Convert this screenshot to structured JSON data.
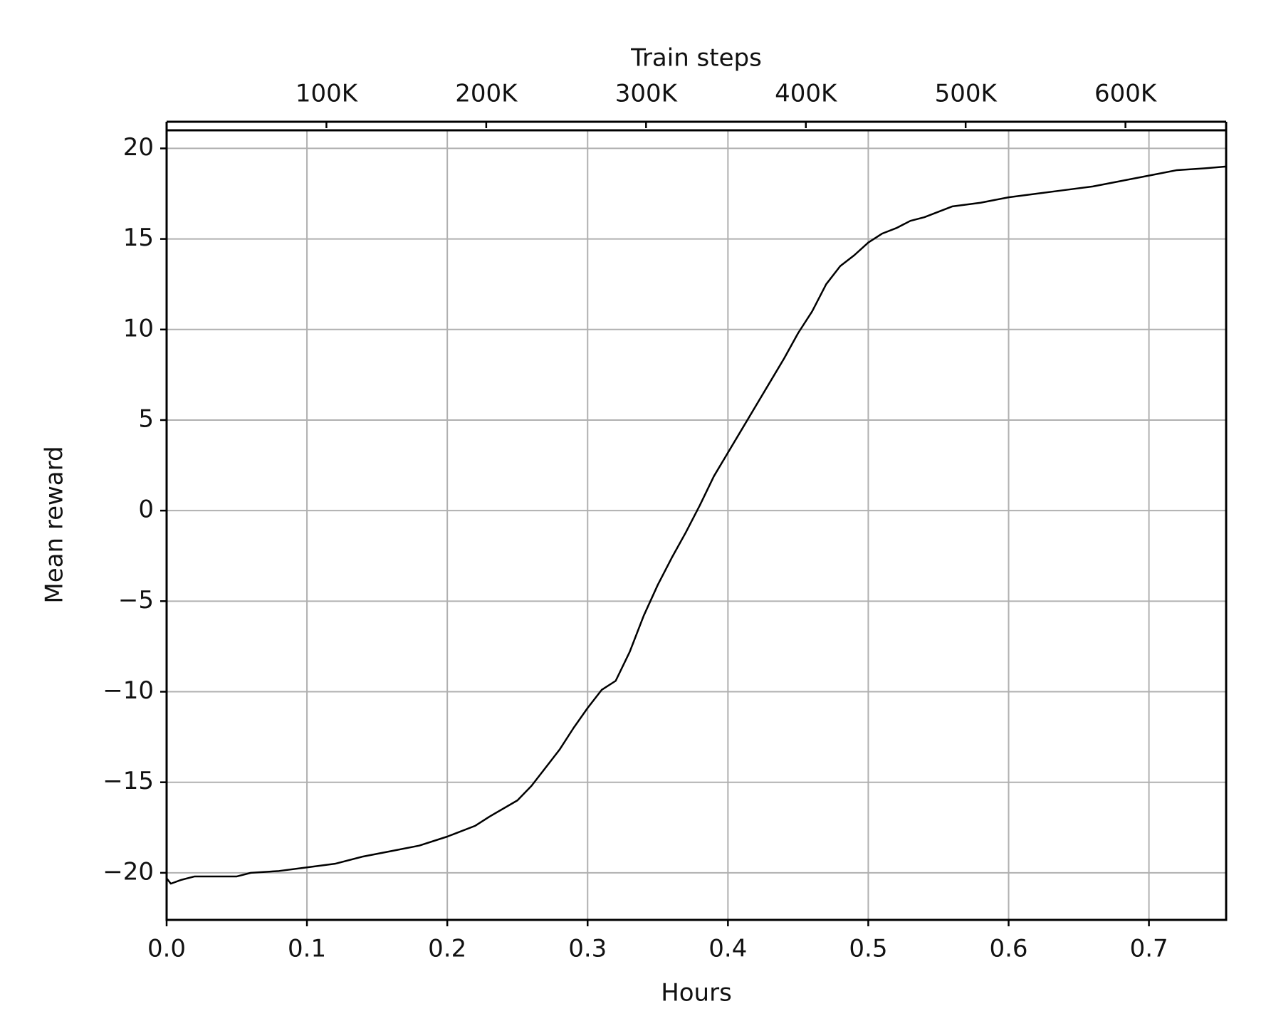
{
  "chart_data": {
    "type": "line",
    "xlabel": "Hours",
    "ylabel": "Mean reward",
    "x2label": "Train steps",
    "xlim": [
      0,
      0.755
    ],
    "ylim": [
      -22.6,
      21.0
    ],
    "x2lim": [
      0,
      663000
    ],
    "xticks": [
      {
        "value": 0,
        "label": "0.0"
      },
      0.1,
      0.2,
      0.3,
      0.4,
      0.5,
      0.6,
      0.7
    ],
    "yticks": [
      {
        "value": -20,
        "label": "−20"
      },
      {
        "value": -15,
        "label": "−15"
      },
      {
        "value": -10,
        "label": "−10"
      },
      {
        "value": -5,
        "label": "−5"
      },
      0,
      5,
      10,
      15,
      20
    ],
    "x2ticks": [
      {
        "value": 100000,
        "label": "100K"
      },
      {
        "value": 200000,
        "label": "200K"
      },
      {
        "value": 300000,
        "label": "300K"
      },
      {
        "value": 400000,
        "label": "400K"
      },
      {
        "value": 500000,
        "label": "500K"
      },
      {
        "value": 600000,
        "label": "600K"
      }
    ],
    "grid": true,
    "color": "#000000",
    "x": [
      0.0,
      0.003,
      0.01,
      0.02,
      0.05,
      0.06,
      0.08,
      0.1,
      0.12,
      0.14,
      0.16,
      0.18,
      0.2,
      0.22,
      0.23,
      0.25,
      0.26,
      0.27,
      0.28,
      0.29,
      0.3,
      0.31,
      0.32,
      0.33,
      0.34,
      0.35,
      0.36,
      0.37,
      0.38,
      0.39,
      0.4,
      0.41,
      0.42,
      0.43,
      0.44,
      0.45,
      0.46,
      0.47,
      0.48,
      0.49,
      0.5,
      0.51,
      0.52,
      0.53,
      0.54,
      0.55,
      0.56,
      0.58,
      0.6,
      0.62,
      0.64,
      0.66,
      0.68,
      0.7,
      0.72,
      0.74,
      0.755
    ],
    "values": [
      -20.3,
      -20.6,
      -20.4,
      -20.2,
      -20.2,
      -20.0,
      -19.9,
      -19.7,
      -19.5,
      -19.1,
      -18.8,
      -18.5,
      -18.0,
      -17.4,
      -16.9,
      -16.0,
      -15.2,
      -14.2,
      -13.2,
      -12.0,
      -10.9,
      -9.9,
      -9.4,
      -7.8,
      -5.8,
      -4.1,
      -2.6,
      -1.2,
      0.3,
      1.9,
      3.2,
      4.5,
      5.8,
      7.1,
      8.4,
      9.8,
      11.0,
      12.5,
      13.5,
      14.1,
      14.8,
      15.3,
      15.6,
      16.0,
      16.2,
      16.5,
      16.8,
      17.0,
      17.3,
      17.5,
      17.7,
      17.9,
      18.2,
      18.5,
      18.8,
      18.9,
      19.0
    ]
  }
}
